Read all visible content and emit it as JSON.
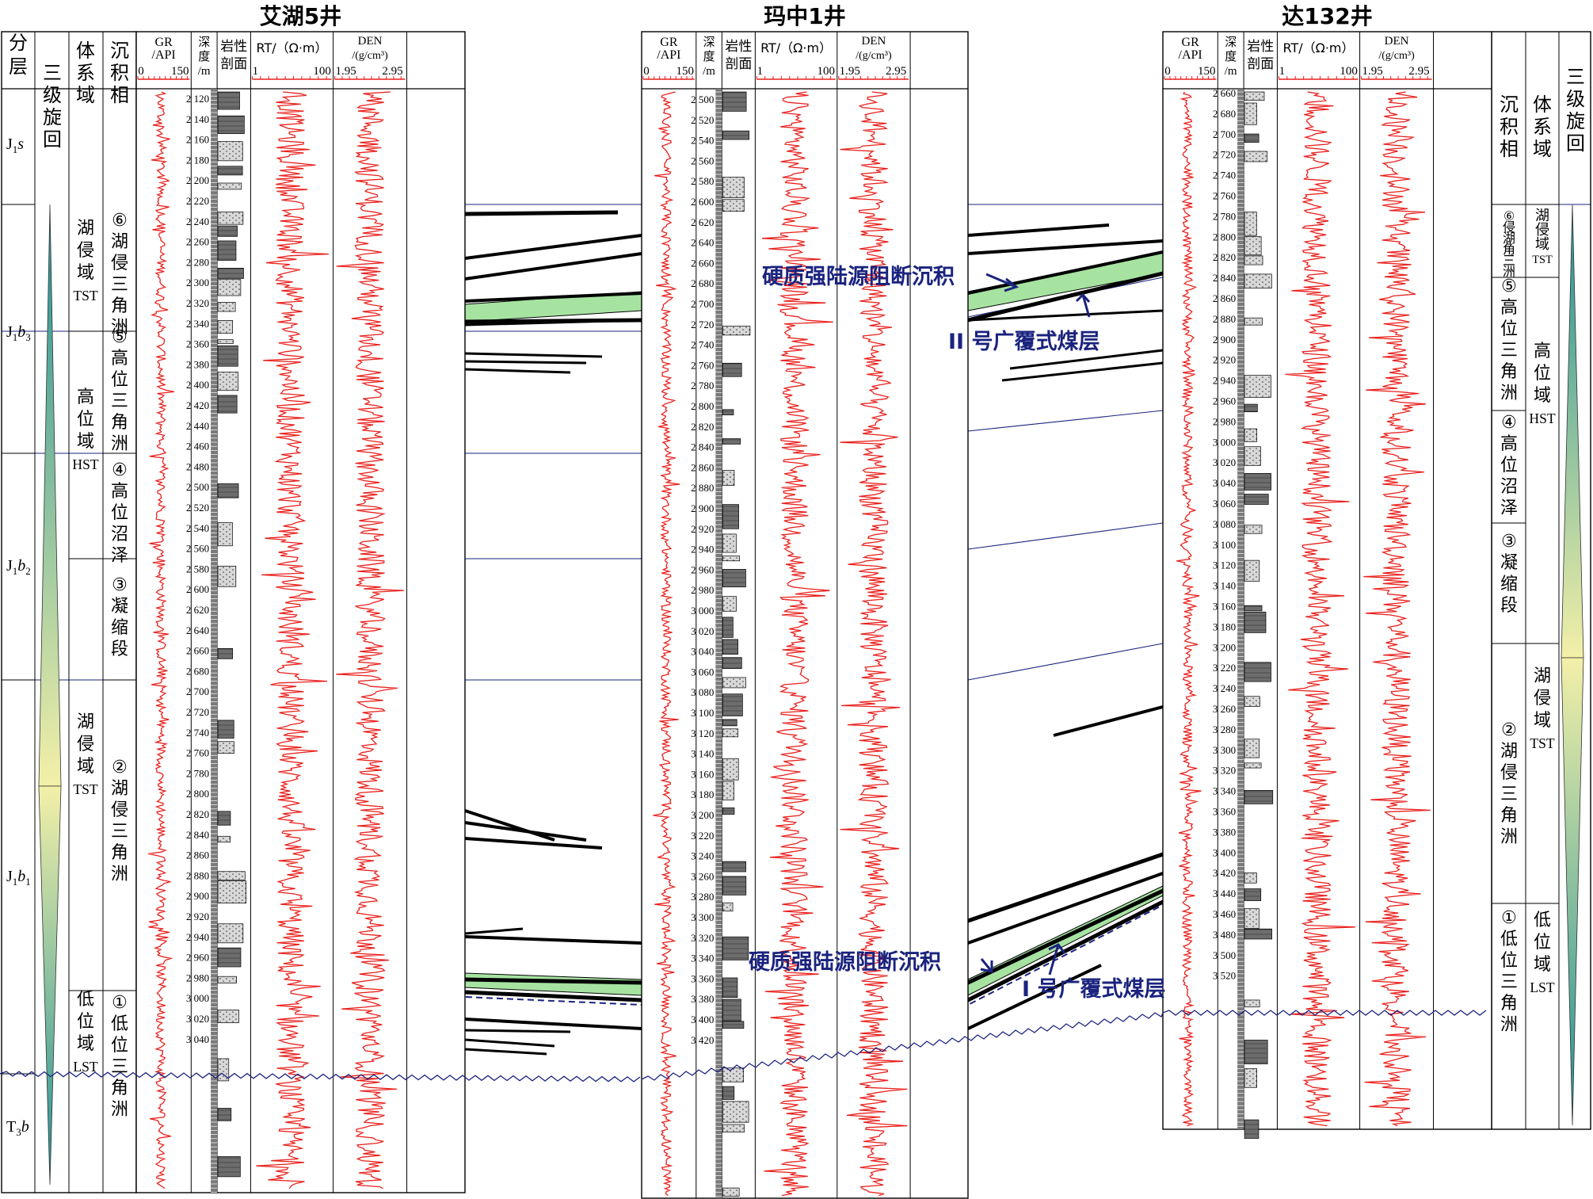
{
  "wells": [
    {
      "name": "艾湖5井",
      "headers": {
        "gr": [
          "GR",
          "/API"
        ],
        "gr_scale": [
          "0",
          "150"
        ],
        "depth": [
          "深",
          "度",
          "/m"
        ],
        "lith": [
          "岩性",
          "剖面"
        ],
        "rt": "RT/（Ω·m）",
        "rt_scale": [
          "1",
          "100"
        ],
        "den": [
          "DEN",
          "/(g/cm³)"
        ],
        "den_scale": [
          "1.95",
          "2.95"
        ]
      },
      "depths": [
        "2 120",
        "2 140",
        "2 160",
        "2 180",
        "2 200",
        "2 220",
        "2 240",
        "2 260",
        "2 280",
        "2 300",
        "2 320",
        "2 340",
        "2 360",
        "2 380",
        "2 400",
        "2 420",
        "2 440",
        "2 460",
        "2 480",
        "2 500",
        "2 520",
        "2 540",
        "2 560",
        "2 580",
        "2 600",
        "2 620",
        "2 640",
        "2 660",
        "2 680",
        "2 700",
        "2 720",
        "2 740",
        "2 760",
        "2 780",
        "2 800",
        "2 820",
        "2 840",
        "2 860",
        "2 880",
        "2 900",
        "2 920",
        "2 940",
        "2 960",
        "2 980",
        "3 000",
        "3 020",
        "3 040"
      ]
    },
    {
      "name": "玛中1井",
      "headers": {
        "gr": [
          "GR",
          "/API"
        ],
        "gr_scale": [
          "0",
          "150"
        ],
        "depth": [
          "深",
          "度",
          "/m"
        ],
        "lith": [
          "岩性",
          "剖面"
        ],
        "rt": "RT/（Ω·m）",
        "rt_scale": [
          "1",
          "100"
        ],
        "den": [
          "DEN",
          "/(g/cm³)"
        ],
        "den_scale": [
          "1.95",
          "2.95"
        ]
      },
      "depths": [
        "2 500",
        "2 520",
        "2 540",
        "2 560",
        "2 580",
        "2 600",
        "2 620",
        "2 640",
        "2 660",
        "2 680",
        "2 700",
        "2 720",
        "2 740",
        "2 760",
        "2 780",
        "2 800",
        "2 820",
        "2 840",
        "2 860",
        "2 880",
        "2 900",
        "2 920",
        "2 940",
        "2 960",
        "2 980",
        "3 000",
        "3 020",
        "3 040",
        "3 060",
        "3 080",
        "3 100",
        "3 120",
        "3 140",
        "3 160",
        "3 180",
        "3 200",
        "3 220",
        "3 240",
        "3 260",
        "3 280",
        "3 300",
        "3 320",
        "3 340",
        "3 360",
        "3 380",
        "3 400",
        "3 420"
      ]
    },
    {
      "name": "达132井",
      "headers": {
        "gr": [
          "GR",
          "/API"
        ],
        "gr_scale": [
          "0",
          "150"
        ],
        "depth": [
          "深",
          "度",
          "/m"
        ],
        "lith": [
          "岩性",
          "剖面"
        ],
        "rt": "RT/（Ω·m）",
        "rt_scale": [
          "1",
          "100"
        ],
        "den": [
          "DEN",
          "/(g/cm³)"
        ],
        "den_scale": [
          "1.95",
          "2.95"
        ]
      },
      "depths": [
        "2 660",
        "2 680",
        "2 700",
        "2 720",
        "2 740",
        "2 760",
        "2 780",
        "2 800",
        "2 820",
        "2 840",
        "2 860",
        "2 880",
        "2 900",
        "2 920",
        "2 940",
        "2 960",
        "2 980",
        "3 000",
        "3 020",
        "3 040",
        "3 060",
        "3 080",
        "3 100",
        "3 120",
        "3 140",
        "3 160",
        "3 180",
        "3 200",
        "3 220",
        "3 240",
        "3 260",
        "3 280",
        "3 300",
        "3 320",
        "3 340",
        "3 360",
        "3 380",
        "3 400",
        "3 420",
        "3 440",
        "3 460",
        "3 480",
        "3 500",
        "3 520"
      ]
    }
  ],
  "left_headers": {
    "strat": [
      "分",
      "层"
    ],
    "cycle": [
      "三",
      "级",
      "旋",
      "回"
    ],
    "tract": [
      "体",
      "系",
      "域"
    ],
    "facies": [
      "沉",
      "积",
      "相"
    ]
  },
  "right_headers": {
    "facies": [
      "沉",
      "积",
      "相"
    ],
    "tract": [
      "体",
      "系",
      "域"
    ],
    "cycle": [
      "三",
      "级",
      "旋",
      "回"
    ]
  },
  "strata": [
    {
      "base": "J",
      "sub": "1",
      "tail": "s"
    },
    {
      "base": "J",
      "sub": "1",
      "tail": "b",
      "sub2": "3"
    },
    {
      "base": "J",
      "sub": "1",
      "tail": "b",
      "sub2": "2"
    },
    {
      "base": "J",
      "sub": "1",
      "tail": "b",
      "sub2": "1"
    },
    {
      "base": "T",
      "sub": "3",
      "tail": "b"
    }
  ],
  "left_tracts": [
    [
      "湖",
      "侵",
      "域",
      "TST"
    ],
    [
      "高",
      "位",
      "域",
      "HST"
    ],
    [
      "湖",
      "侵",
      "域",
      "TST"
    ],
    [
      "低",
      "位",
      "域",
      "LST"
    ]
  ],
  "left_facies": [
    [
      "⑥",
      "湖",
      "侵",
      "三",
      "角",
      "洲"
    ],
    [
      "⑤",
      "高",
      "位",
      "三",
      "角",
      "洲"
    ],
    [
      "④",
      "高",
      "位",
      "沼",
      "泽"
    ],
    [
      "③",
      "凝",
      "缩",
      "段"
    ],
    [
      "②",
      "湖",
      "侵",
      "三",
      "角",
      "洲"
    ],
    [
      "①",
      "低",
      "位",
      "三",
      "角",
      "洲"
    ]
  ],
  "right_facies": [
    [
      "⑥",
      "侵",
      "湖",
      "角",
      "三",
      "洲"
    ],
    [
      "⑤",
      "高",
      "位",
      "三",
      "角",
      "洲"
    ],
    [
      "④",
      "高",
      "位",
      "沼",
      "泽"
    ],
    [
      "③",
      "凝",
      "缩",
      "段"
    ],
    [
      "②",
      "湖",
      "侵",
      "三",
      "角",
      "洲"
    ],
    [
      "①",
      "低",
      "位",
      "三",
      "角",
      "洲"
    ]
  ],
  "right_tracts": [
    [
      "湖",
      "侵",
      "域",
      "TST"
    ],
    [
      "高",
      "位",
      "域",
      "HST"
    ],
    [
      "湖",
      "侵",
      "域",
      "TST"
    ],
    [
      "低",
      "位",
      "域",
      "LST"
    ]
  ],
  "annotations": {
    "barrier_upper": "硬质强陆源阻断沉积",
    "coal_ii": "II 号广覆式煤层",
    "barrier_lower": "硬质强陆源阻断沉积",
    "coal_i": "I 号广覆式煤层"
  },
  "colors": {
    "log_curve": "#e8211d",
    "coal": "#000000",
    "marker_bed": "#a6e3a1",
    "boundary": "#1a237e",
    "cycle_top": "#f3f0a8",
    "cycle_bottom": "#1f8e96"
  }
}
